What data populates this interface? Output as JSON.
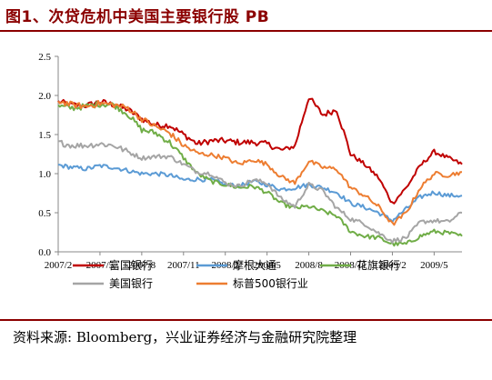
{
  "figure": {
    "title": "图1、次贷危机中美国主要银行股 PB",
    "source": "资料来源: Bloomberg，兴业证券经济与金融研究院整理"
  },
  "chart_data": {
    "type": "line",
    "title": "",
    "xlabel": "",
    "ylabel": "",
    "ylim": [
      0,
      2.5
    ],
    "yticks": [
      "0.0",
      "0.5",
      "1.0",
      "1.5",
      "2.0",
      "2.5"
    ],
    "x_range": [
      "2007/2",
      "2009/7"
    ],
    "xticks": [
      "2007/2",
      "2007/5",
      "2007/8",
      "2007/11",
      "2008/2",
      "2008/5",
      "2008/8",
      "2008/11",
      "2009/2",
      "2009/5"
    ],
    "grid": false,
    "legend_position": "bottom",
    "x": [
      "2007/2",
      "2007/3",
      "2007/4",
      "2007/5",
      "2007/6",
      "2007/7",
      "2007/8",
      "2007/9",
      "2007/10",
      "2007/11",
      "2007/12",
      "2008/1",
      "2008/2",
      "2008/3",
      "2008/4",
      "2008/5",
      "2008/6",
      "2008/7",
      "2008/8",
      "2008/9",
      "2008/10",
      "2008/11",
      "2008/12",
      "2009/1",
      "2009/2",
      "2009/3",
      "2009/4",
      "2009/5",
      "2009/6",
      "2009/7"
    ],
    "series": [
      {
        "name": "富国银行",
        "color": "#c00000",
        "values": [
          1.92,
          1.88,
          1.87,
          1.92,
          1.88,
          1.82,
          1.7,
          1.62,
          1.62,
          1.5,
          1.38,
          1.42,
          1.42,
          1.4,
          1.4,
          1.38,
          1.3,
          1.35,
          1.98,
          1.75,
          1.82,
          1.25,
          1.12,
          0.95,
          0.62,
          0.82,
          1.1,
          1.28,
          1.2,
          1.12
        ]
      },
      {
        "name": "摩根大通",
        "color": "#5b9bd5",
        "values": [
          1.11,
          1.08,
          1.06,
          1.1,
          1.08,
          1.04,
          1.0,
          1.0,
          0.98,
          0.92,
          0.93,
          0.92,
          0.86,
          0.84,
          0.9,
          0.86,
          0.8,
          0.82,
          0.86,
          0.82,
          0.76,
          0.62,
          0.57,
          0.5,
          0.4,
          0.55,
          0.7,
          0.76,
          0.72,
          0.72
        ]
      },
      {
        "name": "花旗银行",
        "color": "#70ad47",
        "values": [
          1.86,
          1.84,
          1.86,
          1.89,
          1.88,
          1.76,
          1.56,
          1.52,
          1.4,
          1.2,
          1.0,
          0.9,
          0.86,
          0.82,
          0.84,
          0.76,
          0.62,
          0.56,
          0.58,
          0.52,
          0.46,
          0.26,
          0.2,
          0.18,
          0.1,
          0.1,
          0.2,
          0.26,
          0.24,
          0.2
        ]
      },
      {
        "name": "美国银行",
        "color": "#a5a5a5",
        "values": [
          1.4,
          1.36,
          1.36,
          1.38,
          1.36,
          1.28,
          1.2,
          1.22,
          1.22,
          1.12,
          1.02,
          1.0,
          0.88,
          0.84,
          0.92,
          0.88,
          0.68,
          0.58,
          0.86,
          0.78,
          0.56,
          0.42,
          0.36,
          0.24,
          0.14,
          0.18,
          0.38,
          0.4,
          0.38,
          0.5
        ]
      },
      {
        "name": "标普500银行业",
        "color": "#ed7d31",
        "values": [
          1.93,
          1.88,
          1.86,
          1.9,
          1.88,
          1.84,
          1.7,
          1.6,
          1.52,
          1.36,
          1.26,
          1.24,
          1.2,
          1.12,
          1.18,
          1.12,
          0.96,
          0.88,
          1.16,
          1.08,
          1.06,
          0.82,
          0.72,
          0.58,
          0.35,
          0.5,
          0.82,
          1.0,
          0.98,
          1.02
        ]
      }
    ]
  }
}
